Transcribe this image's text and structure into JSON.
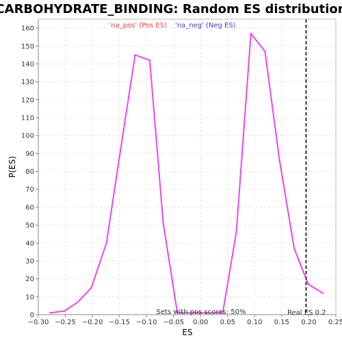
{
  "chart_data": {
    "type": "line",
    "title": "CARBOHYDRATE_BINDING: Random ES distribution",
    "xlabel": "ES",
    "ylabel": "P(ES)",
    "xlim": [
      -0.3,
      0.25
    ],
    "ylim": [
      0,
      165
    ],
    "x_ticks": [
      "−0.30",
      "−0.25",
      "−0.20",
      "−0.15",
      "−0.10",
      "−0.05",
      "0.00",
      "0.05",
      "0.10",
      "0.15",
      "0.20",
      "0.25"
    ],
    "y_ticks": [
      "0",
      "10",
      "20",
      "30",
      "40",
      "50",
      "60",
      "70",
      "80",
      "90",
      "100",
      "110",
      "120",
      "130",
      "140",
      "150",
      "160"
    ],
    "grid": true,
    "legend": {
      "placement": "top-center",
      "entries": [
        {
          "label": "'na_pos' (Pos ES)",
          "color": "#e8413c"
        },
        {
          "label": "'na_neg' (Neg ES)",
          "color": "#3c3cd8"
        }
      ]
    },
    "series": [
      {
        "color": "#ee44ee",
        "x": [
          -0.278,
          -0.252,
          -0.227,
          -0.202,
          -0.174,
          -0.148,
          -0.121,
          -0.094,
          -0.069,
          -0.043,
          0.041,
          0.066,
          0.093,
          0.119,
          0.146,
          0.173,
          0.199,
          0.226
        ],
        "y": [
          1,
          2,
          7,
          15,
          40,
          92,
          145,
          142,
          51,
          1,
          1,
          46,
          157,
          147,
          86,
          37,
          17,
          12
        ]
      }
    ],
    "real_es": {
      "value": 0.195,
      "label": "Real ES 0.2",
      "color": "#333333"
    },
    "annotation": "Sets with pos scores: 50%"
  }
}
